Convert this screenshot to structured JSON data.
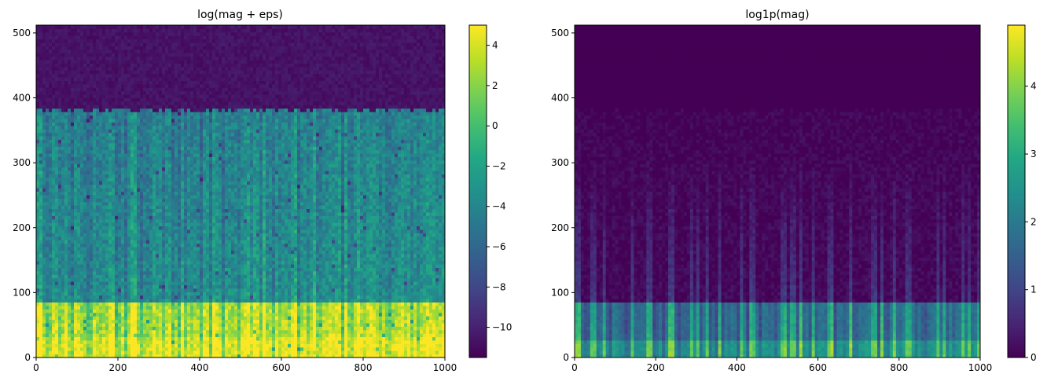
{
  "chart_data": [
    {
      "type": "heatmap",
      "title": "log(mag + eps)",
      "xlabel": "",
      "ylabel": "",
      "xlim": [
        0,
        1000
      ],
      "ylim": [
        0,
        512
      ],
      "x_ticks": [
        "0",
        "200",
        "400",
        "600",
        "800",
        "1000"
      ],
      "y_ticks": [
        "0",
        "100",
        "200",
        "300",
        "400",
        "500"
      ],
      "colorbar": {
        "range": [
          -11.5,
          5
        ],
        "ticks": [
          -10,
          -8,
          -6,
          -4,
          -2,
          0,
          2,
          4
        ],
        "tick_labels": [
          "−10",
          "−8",
          "−6",
          "−4",
          "−2",
          "0",
          "2",
          "4"
        ]
      },
      "colormap": "viridis",
      "grid": false
    },
    {
      "type": "heatmap",
      "title": "log1p(mag)",
      "xlabel": "",
      "ylabel": "",
      "xlim": [
        0,
        1000
      ],
      "ylim": [
        0,
        512
      ],
      "x_ticks": [
        "0",
        "200",
        "400",
        "600",
        "800",
        "1000"
      ],
      "y_ticks": [
        "0",
        "100",
        "200",
        "300",
        "400",
        "500"
      ],
      "colorbar": {
        "range": [
          0,
          4.9
        ],
        "ticks": [
          0,
          1,
          2,
          3,
          4
        ],
        "tick_labels": [
          "0",
          "1",
          "2",
          "3",
          "4"
        ]
      },
      "colormap": "viridis",
      "grid": false
    }
  ]
}
